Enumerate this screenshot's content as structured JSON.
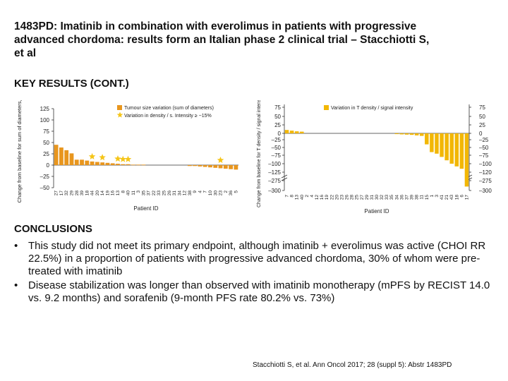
{
  "slide": {
    "title": "1483PD: Imatinib in combination with everolimus in patients with progressive advanced chordoma: results form an Italian phase 2 clinical trial – Stacchiotti S, et al",
    "section_title": "KEY RESULTS (CONT.)",
    "conclusions_title": "CONCLUSIONS",
    "bullet_char": "•",
    "conclusions": [
      "This study did not meet its primary endpoint, although imatinib + everolimus was active (CHOI RR 22.5%) in a proportion of patients with progressive advanced chordoma, 30% of whom were pre-treated with imatinib",
      "Disease stabilization was longer than observed with imatinib monotherapy (mPFS by RECIST 14.0 vs. 9.2 months) and sorafenib (9-month PFS rate 80.2% vs. 73%)"
    ],
    "citation": "Stacchiotti S, et al. Ann Oncol 2017; 28 (suppl 5): Abstr 1483PD"
  },
  "chart_data": [
    {
      "type": "bar",
      "title": "",
      "ylabel": "Change from baseline for sum of diameters, %",
      "xlabel": "Patient ID",
      "ylim": [
        -50,
        125
      ],
      "yticks": [
        "125",
        "100",
        "75",
        "50",
        "25",
        "0",
        "–25",
        "–50"
      ],
      "ytick_values": [
        125,
        100,
        75,
        50,
        25,
        0,
        -25,
        -50
      ],
      "color": "#E8961E",
      "star_color": "#F5C518",
      "legend": [
        {
          "label": "Tumour size variation (sum of diameters)",
          "kind": "bar"
        },
        {
          "label": "Variation in density / s. Intensity ≥ −15%",
          "kind": "star"
        }
      ],
      "categories": [
        "27",
        "17",
        "32",
        "29",
        "28",
        "39",
        "18",
        "44",
        "20",
        "14",
        "19",
        "16",
        "13",
        "8",
        "40",
        "11",
        "3",
        "35",
        "37",
        "22",
        "33",
        "25",
        "26",
        "31",
        "34",
        "12",
        "38",
        "9",
        "4",
        "7",
        "10",
        "30",
        "23",
        "2",
        "36",
        "5"
      ],
      "values": [
        45,
        39,
        33,
        26,
        12,
        12,
        10,
        8,
        7,
        6,
        5,
        4,
        3,
        2,
        2,
        1,
        1,
        1,
        0,
        0,
        0,
        0,
        0,
        0,
        0,
        0,
        -2,
        -2,
        -3,
        -4,
        -5,
        -6,
        -7,
        -8,
        -9,
        -10
      ],
      "stars": [
        7,
        9,
        12,
        13,
        14,
        32
      ]
    },
    {
      "type": "bar",
      "title": "",
      "ylabel": "Change from baseline for T density / signal intensity, %",
      "xlabel": "Patient ID",
      "yticks_left": [
        "75",
        "50",
        "25",
        "0",
        "–25",
        "–50",
        "–75",
        "–100",
        "–125",
        "–275",
        "–300"
      ],
      "yticks_right": [
        "75",
        "50",
        "25",
        "0",
        "–25",
        "–50",
        "–75",
        "–100",
        "–120",
        "–275",
        "–300"
      ],
      "color": "#F2B705",
      "legend": [
        {
          "label": "Variation in T density / signal intensity",
          "kind": "bar"
        }
      ],
      "categories": [
        "7",
        "8",
        "13",
        "40",
        "2",
        "4",
        "12",
        "16",
        "19",
        "22",
        "20",
        "23",
        "26",
        "28",
        "25",
        "27",
        "29",
        "31",
        "30",
        "32",
        "33",
        "35",
        "34",
        "36",
        "37",
        "39",
        "38",
        "11",
        "15",
        "1",
        "3",
        "41",
        "21",
        "43",
        "18",
        "6",
        "17"
      ],
      "values": [
        10,
        8,
        6,
        5,
        0,
        0,
        0,
        0,
        0,
        0,
        0,
        0,
        0,
        0,
        0,
        0,
        0,
        0,
        0,
        0,
        0,
        0,
        -3,
        -4,
        -5,
        -6,
        -8,
        -10,
        -40,
        -65,
        -70,
        -80,
        -90,
        -100,
        -108,
        -115,
        -290
      ]
    }
  ]
}
